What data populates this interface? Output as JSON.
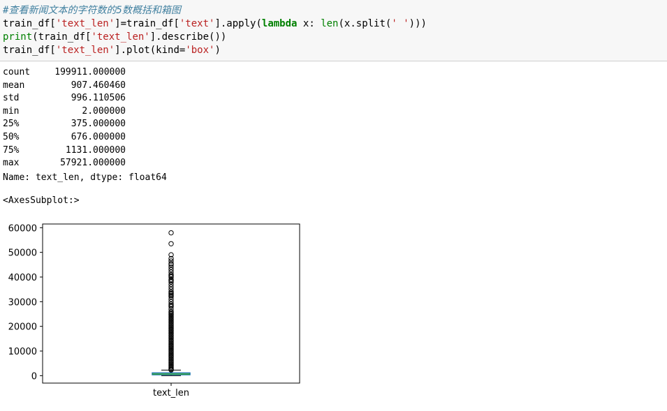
{
  "input_cell": {
    "comment": "#查看新闻文本的字符数的5数概括和箱图",
    "line2": {
      "a": "train_df[",
      "b": "'text_len'",
      "c": "]=train_df[",
      "d": "'text'",
      "e": "].apply(",
      "f": "lambda",
      "g": " x: ",
      "h": "len",
      "i": "(x.split(",
      "j": "' '",
      "k": ")))"
    },
    "line3": {
      "a": "print",
      "b": "(train_df[",
      "c": "'text_len'",
      "d": "].describe())"
    },
    "line4": {
      "a": "train_df[",
      "b": "'text_len'",
      "c": "].plot(kind=",
      "d": "'box'",
      "e": ")"
    }
  },
  "describe_output": {
    "rows": [
      {
        "key": "count",
        "value": "199911.000000"
      },
      {
        "key": "mean",
        "value": "907.460460"
      },
      {
        "key": "std",
        "value": "996.110506"
      },
      {
        "key": "min",
        "value": "2.000000"
      },
      {
        "key": "25%",
        "value": "375.000000"
      },
      {
        "key": "50%",
        "value": "676.000000"
      },
      {
        "key": "75%",
        "value": "1131.000000"
      },
      {
        "key": "max",
        "value": "57921.000000"
      }
    ],
    "footer": "Name: text_len, dtype: float64"
  },
  "plot_repr": "<AxesSubplot:>",
  "chart_data": {
    "type": "box",
    "categories": [
      "text_len"
    ],
    "yticks": [
      0,
      10000,
      20000,
      30000,
      40000,
      50000,
      60000
    ],
    "ytick_labels": [
      "0",
      "10000",
      "20000",
      "30000",
      "40000",
      "50000",
      "60000"
    ],
    "ylim": [
      -3000,
      61500
    ],
    "box": {
      "q1": 375,
      "median": 676,
      "q3": 1131,
      "whisker_low": 2,
      "whisker_high": 2265
    },
    "outliers": [
      2300,
      2600,
      3000,
      3500,
      4000,
      4500,
      5000,
      5500,
      6000,
      6500,
      7000,
      7500,
      8000,
      8500,
      9000,
      9500,
      10000,
      10500,
      11000,
      11500,
      12000,
      12500,
      13000,
      13500,
      14000,
      14500,
      15000,
      15500,
      16000,
      16500,
      17000,
      17500,
      18000,
      18500,
      19000,
      19500,
      20000,
      20500,
      21000,
      21500,
      22000,
      22500,
      23000,
      23500,
      24000,
      24500,
      25000,
      25500,
      26000,
      27000,
      28000,
      28500,
      29000,
      30000,
      31000,
      32000,
      32500,
      33000,
      33500,
      34000,
      35000,
      36000,
      37000,
      38000,
      38500,
      39000,
      40000,
      40500,
      41000,
      42000,
      43000,
      44000,
      45000,
      45500,
      46500,
      47500,
      49000,
      53500,
      57921
    ],
    "colors": {
      "box": "#1f77b4",
      "median": "#2ca02c",
      "whisker": "#000000"
    }
  }
}
